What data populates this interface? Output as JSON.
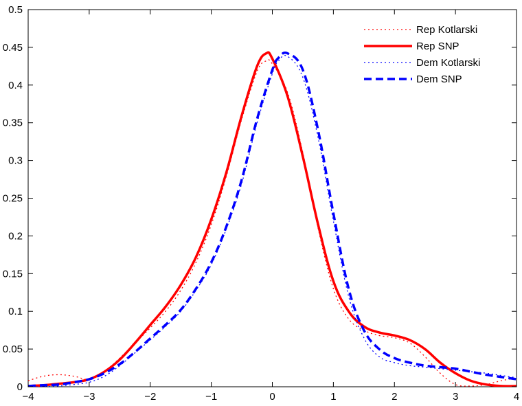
{
  "chart_data": {
    "type": "line",
    "title": "",
    "xlabel": "",
    "ylabel": "",
    "xlim": [
      -4,
      4
    ],
    "ylim": [
      0,
      0.5
    ],
    "xticks": [
      -4,
      -3,
      -2,
      -1,
      0,
      1,
      2,
      3,
      4
    ],
    "yticks": [
      0,
      0.05,
      0.1,
      0.15,
      0.2,
      0.25,
      0.3,
      0.35,
      0.4,
      0.45,
      0.5
    ],
    "xtick_labels": [
      "−4",
      "−3",
      "−2",
      "−1",
      "0",
      "1",
      "2",
      "3",
      "4"
    ],
    "ytick_labels": [
      "0",
      "0.05",
      "0.1",
      "0.15",
      "0.2",
      "0.25",
      "0.3",
      "0.35",
      "0.4",
      "0.45",
      "0.5"
    ],
    "grid": false,
    "legend_position": "top-right",
    "series": [
      {
        "name": "Rep Kotlarski",
        "color": "#ff0000",
        "style": "dotted",
        "x": [
          -4.0,
          -3.75,
          -3.5,
          -3.25,
          -3.0,
          -2.75,
          -2.5,
          -2.25,
          -2.0,
          -1.75,
          -1.5,
          -1.25,
          -1.0,
          -0.75,
          -0.5,
          -0.25,
          -0.1,
          0.0,
          0.25,
          0.5,
          0.75,
          1.0,
          1.25,
          1.5,
          1.75,
          2.0,
          2.25,
          2.5,
          2.75,
          3.0,
          3.25,
          3.5,
          3.75,
          4.0
        ],
        "y": [
          0.008,
          0.014,
          0.016,
          0.014,
          0.01,
          0.02,
          0.038,
          0.058,
          0.078,
          0.1,
          0.128,
          0.165,
          0.215,
          0.28,
          0.355,
          0.418,
          0.432,
          0.428,
          0.39,
          0.31,
          0.21,
          0.13,
          0.09,
          0.075,
          0.068,
          0.065,
          0.058,
          0.04,
          0.018,
          0.003,
          0.001,
          0.003,
          0.008,
          0.012
        ]
      },
      {
        "name": "Rep SNP",
        "color": "#ff0000",
        "style": "solid",
        "x": [
          -4.0,
          -3.75,
          -3.5,
          -3.25,
          -3.0,
          -2.75,
          -2.5,
          -2.25,
          -2.0,
          -1.75,
          -1.5,
          -1.25,
          -1.0,
          -0.75,
          -0.5,
          -0.25,
          -0.1,
          0.0,
          0.25,
          0.5,
          0.75,
          1.0,
          1.25,
          1.5,
          1.75,
          2.0,
          2.25,
          2.5,
          2.75,
          3.0,
          3.25,
          3.5,
          3.75,
          4.0
        ],
        "y": [
          0.001,
          0.002,
          0.004,
          0.006,
          0.01,
          0.02,
          0.036,
          0.058,
          0.082,
          0.106,
          0.135,
          0.172,
          0.222,
          0.285,
          0.36,
          0.425,
          0.442,
          0.435,
          0.385,
          0.305,
          0.215,
          0.14,
          0.1,
          0.08,
          0.072,
          0.068,
          0.062,
          0.05,
          0.032,
          0.018,
          0.008,
          0.003,
          0.001,
          0.001
        ]
      },
      {
        "name": "Dem Kotlarski",
        "color": "#0000ff",
        "style": "dotted",
        "x": [
          -4.0,
          -3.75,
          -3.5,
          -3.25,
          -3.0,
          -2.75,
          -2.5,
          -2.25,
          -2.0,
          -1.75,
          -1.5,
          -1.25,
          -1.0,
          -0.75,
          -0.5,
          -0.25,
          0.0,
          0.1,
          0.25,
          0.5,
          0.75,
          1.0,
          1.25,
          1.5,
          1.75,
          2.0,
          2.25,
          2.5,
          2.75,
          3.0,
          3.25,
          3.5,
          3.75,
          4.0
        ],
        "y": [
          0.0,
          0.0,
          0.001,
          0.003,
          0.006,
          0.014,
          0.028,
          0.045,
          0.062,
          0.08,
          0.1,
          0.128,
          0.162,
          0.21,
          0.27,
          0.35,
          0.415,
          0.432,
          0.438,
          0.41,
          0.33,
          0.22,
          0.12,
          0.065,
          0.04,
          0.032,
          0.028,
          0.026,
          0.024,
          0.022,
          0.02,
          0.018,
          0.015,
          0.012
        ]
      },
      {
        "name": "Dem SNP",
        "color": "#0000ff",
        "style": "dashed",
        "x": [
          -4.0,
          -3.75,
          -3.5,
          -3.25,
          -3.0,
          -2.75,
          -2.5,
          -2.25,
          -2.0,
          -1.75,
          -1.5,
          -1.25,
          -1.0,
          -0.75,
          -0.5,
          -0.25,
          0.0,
          0.1,
          0.25,
          0.5,
          0.75,
          1.0,
          1.25,
          1.5,
          1.75,
          2.0,
          2.25,
          2.5,
          2.75,
          3.0,
          3.25,
          3.5,
          3.75,
          4.0
        ],
        "y": [
          0.001,
          0.002,
          0.003,
          0.006,
          0.01,
          0.018,
          0.03,
          0.046,
          0.064,
          0.082,
          0.102,
          0.13,
          0.165,
          0.213,
          0.275,
          0.355,
          0.42,
          0.436,
          0.442,
          0.42,
          0.34,
          0.23,
          0.13,
          0.075,
          0.05,
          0.038,
          0.032,
          0.028,
          0.026,
          0.024,
          0.02,
          0.016,
          0.013,
          0.01
        ]
      }
    ]
  }
}
